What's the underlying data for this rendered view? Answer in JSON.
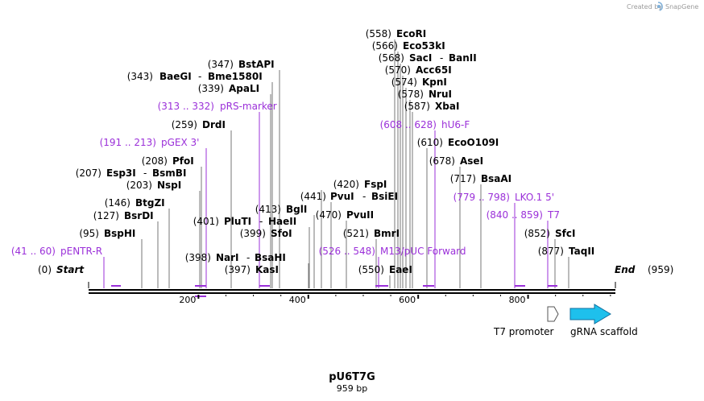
{
  "credit": {
    "text": "Created by",
    "brand": "SnapGene"
  },
  "plasmid": {
    "name": "pU6T7G",
    "length": "959 bp",
    "total_bp": 959
  },
  "ruler": {
    "ticks": [
      "200",
      "400",
      "600",
      "800"
    ]
  },
  "features": {
    "t7_promoter": "T7 promoter",
    "grna_scaffold": "gRNA scaffold"
  },
  "sites": [
    {
      "id": "start",
      "num": "(0)",
      "name": "Start",
      "kind": "end"
    },
    {
      "id": "pentr-r",
      "num": "(41 .. 60)",
      "name": "pENTR-R",
      "kind": "primer"
    },
    {
      "id": "bsphi",
      "num": "(95)",
      "name": "BspHI",
      "kind": "enzyme"
    },
    {
      "id": "bsrdi",
      "num": "(127)",
      "name": "BsrDI",
      "kind": "enzyme"
    },
    {
      "id": "btgzi",
      "num": "(146)",
      "name": "BtgZI",
      "kind": "enzyme"
    },
    {
      "id": "nspi",
      "num": "(203)",
      "name": "NspI",
      "kind": "enzyme"
    },
    {
      "id": "esp3i",
      "num": "(207)",
      "name": "Esp3I",
      "name2": "BsmBI",
      "kind": "enzyme"
    },
    {
      "id": "pfoi",
      "num": "(208)",
      "name": "PfoI",
      "kind": "enzyme"
    },
    {
      "id": "pgex3",
      "num": "(191 .. 213)",
      "name": "pGEX 3'",
      "kind": "primer"
    },
    {
      "id": "drdi",
      "num": "(259)",
      "name": "DrdI",
      "kind": "enzyme"
    },
    {
      "id": "prs-marker",
      "num": "(313 .. 332)",
      "name": "pRS-marker",
      "kind": "primer"
    },
    {
      "id": "apali",
      "num": "(339)",
      "name": "ApaLI",
      "kind": "enzyme"
    },
    {
      "id": "baegi",
      "num": "(343)",
      "name": "BaeGI",
      "name2": "Bme1580I",
      "kind": "enzyme"
    },
    {
      "id": "bstapi",
      "num": "(347)",
      "name": "BstAPI",
      "kind": "enzyme"
    },
    {
      "id": "kasi",
      "num": "(397)",
      "name": "KasI",
      "kind": "enzyme"
    },
    {
      "id": "nari",
      "num": "(398)",
      "name": "NarI",
      "name2": "BsaHI",
      "kind": "enzyme"
    },
    {
      "id": "sfoi",
      "num": "(399)",
      "name": "SfoI",
      "kind": "enzyme"
    },
    {
      "id": "pluti",
      "num": "(401)",
      "name": "PluTI",
      "name2": "HaeII",
      "kind": "enzyme"
    },
    {
      "id": "bgli",
      "num": "(413)",
      "name": "BglI",
      "kind": "enzyme"
    },
    {
      "id": "fspi",
      "num": "(420)",
      "name": "FspI",
      "kind": "enzyme"
    },
    {
      "id": "pvui",
      "num": "(441)",
      "name": "PvuI",
      "name2": "BsiEI",
      "kind": "enzyme"
    },
    {
      "id": "pvuii",
      "num": "(470)",
      "name": "PvuII",
      "kind": "enzyme"
    },
    {
      "id": "bmri",
      "num": "(521)",
      "name": "BmrI",
      "kind": "enzyme"
    },
    {
      "id": "m13",
      "num": "(526 .. 548)",
      "name": "M13/pUC Forward",
      "kind": "primer"
    },
    {
      "id": "eaei",
      "num": "(550)",
      "name": "EaeI",
      "kind": "enzyme"
    },
    {
      "id": "ecori",
      "num": "(558)",
      "name": "EcoRI",
      "kind": "enzyme"
    },
    {
      "id": "eco53ki",
      "num": "(566)",
      "name": "Eco53kI",
      "kind": "enzyme"
    },
    {
      "id": "saci",
      "num": "(568)",
      "name": "SacI",
      "name2": "BanII",
      "kind": "enzyme"
    },
    {
      "id": "acc65i",
      "num": "(570)",
      "name": "Acc65I",
      "kind": "enzyme"
    },
    {
      "id": "kpni",
      "num": "(574)",
      "name": "KpnI",
      "kind": "enzyme"
    },
    {
      "id": "nrui",
      "num": "(578)",
      "name": "NruI",
      "kind": "enzyme"
    },
    {
      "id": "xbai",
      "num": "(587)",
      "name": "XbaI",
      "kind": "enzyme"
    },
    {
      "id": "hu6f",
      "num": "(608 .. 628)",
      "name": "hU6-F",
      "kind": "primer"
    },
    {
      "id": "eco0109i",
      "num": "(610)",
      "name": "EcoO109I",
      "kind": "enzyme"
    },
    {
      "id": "asei",
      "num": "(678)",
      "name": "AseI",
      "kind": "enzyme"
    },
    {
      "id": "bsaai",
      "num": "(717)",
      "name": "BsaAI",
      "kind": "enzyme"
    },
    {
      "id": "lko15",
      "num": "(779 .. 798)",
      "name": "LKO.1 5'",
      "kind": "primer"
    },
    {
      "id": "t7",
      "num": "(840 .. 859)",
      "name": "T7",
      "kind": "primer"
    },
    {
      "id": "sfci",
      "num": "(852)",
      "name": "SfcI",
      "kind": "enzyme"
    },
    {
      "id": "taqii",
      "num": "(877)",
      "name": "TaqII",
      "kind": "enzyme"
    },
    {
      "id": "end",
      "num": "(959)",
      "name": "End",
      "kind": "end"
    }
  ]
}
